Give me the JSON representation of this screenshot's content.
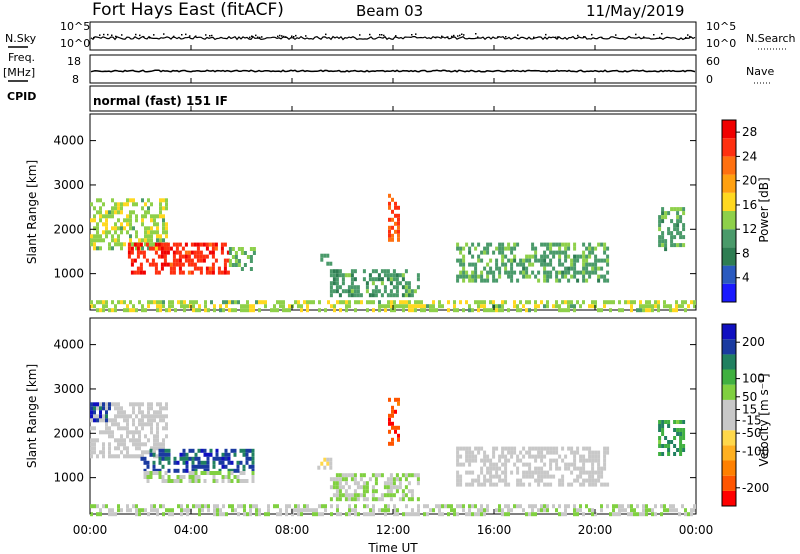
{
  "header": {
    "radar": "Fort Hays East (fitACF)",
    "beam": "Beam 03",
    "date": "11/May/2019"
  },
  "status": {
    "nsky_label": "N.Sky",
    "nsky_ticks": [
      "10^5",
      "10^0"
    ],
    "nsearch_label": "N.Search",
    "nsearch_ticks": [
      "10^5",
      "10^0"
    ],
    "freq_label": "Freq.",
    "freq_unit": "[MHz]",
    "freq_ticks": [
      "18",
      "8"
    ],
    "nave_label": "Nave",
    "nave_ticks": [
      "60",
      "0"
    ],
    "cpid_label": "CPID",
    "cpid_value": "normal (fast) 151 IF"
  },
  "colors": {
    "power_scale": [
      "#1a1aff",
      "#2a5abf",
      "#2e7d52",
      "#4a9a6a",
      "#8ed04a",
      "#ffd820",
      "#ffa010",
      "#ff7010",
      "#ff3010",
      "#f00000"
    ],
    "velocity_scale": [
      "#ff0000",
      "#ff5500",
      "#ff8000",
      "#ffb020",
      "#ffd84a",
      "#c8c8c8",
      "#c8c8c8",
      "#80d040",
      "#40b040",
      "#208060",
      "#1a3aa0",
      "#1010c0"
    ]
  },
  "chart_data": [
    {
      "type": "heatmap",
      "title": "Power",
      "xlabel": "Time UT",
      "ylabel": "Slant Range [km]",
      "x_ticks": [
        "00:00",
        "04:00",
        "08:00",
        "12:00",
        "16:00",
        "20:00",
        "00:00"
      ],
      "xlim_hours": [
        0,
        24
      ],
      "y_ticks": [
        1000,
        2000,
        3000,
        4000
      ],
      "ylim": [
        180,
        4600
      ],
      "colorbar": {
        "label": "Power [dB]",
        "ticks": [
          4,
          8,
          12,
          16,
          20,
          24,
          28
        ],
        "range": [
          0,
          30
        ]
      },
      "regions": [
        {
          "t0": 0.0,
          "t1": 3.0,
          "r0": 1600,
          "r1": 2700,
          "value": 14
        },
        {
          "t0": 1.5,
          "t1": 5.5,
          "r0": 1000,
          "r1": 1700,
          "value": 26
        },
        {
          "t0": 5.5,
          "t1": 6.5,
          "r0": 1100,
          "r1": 1600,
          "value": 12
        },
        {
          "t0": 0.0,
          "t1": 24.0,
          "r0": 180,
          "r1": 400,
          "value": 14
        },
        {
          "t0": 9.0,
          "t1": 9.5,
          "r0": 1250,
          "r1": 1450,
          "value": 10
        },
        {
          "t0": 9.5,
          "t1": 13.0,
          "r0": 550,
          "r1": 1100,
          "value": 10
        },
        {
          "t0": 11.8,
          "t1": 12.2,
          "r0": 1800,
          "r1": 2800,
          "value": 24
        },
        {
          "t0": 14.5,
          "t1": 20.5,
          "r0": 850,
          "r1": 1700,
          "value": 11
        },
        {
          "t0": 22.5,
          "t1": 23.5,
          "r0": 1550,
          "r1": 2500,
          "value": 11
        }
      ]
    },
    {
      "type": "heatmap",
      "title": "Velocity",
      "xlabel": "Time UT",
      "ylabel": "Slant Range [km]",
      "x_ticks": [
        "00:00",
        "04:00",
        "08:00",
        "12:00",
        "16:00",
        "20:00",
        "00:00"
      ],
      "xlim_hours": [
        0,
        24
      ],
      "y_ticks": [
        1000,
        2000,
        3000,
        4000
      ],
      "ylim": [
        180,
        4600
      ],
      "colorbar": {
        "label": "Velocity [m s⁻¹]",
        "ticks": [
          200,
          100,
          50,
          15,
          -15,
          -50,
          -100,
          -200
        ],
        "range": [
          -250,
          250
        ]
      },
      "regions": [
        {
          "t0": 0.0,
          "t1": 3.0,
          "r0": 1500,
          "r1": 2700,
          "value": 0
        },
        {
          "t0": 0.0,
          "t1": 0.8,
          "r0": 2300,
          "r1": 2700,
          "value": 200
        },
        {
          "t0": 2.0,
          "t1": 6.5,
          "r0": 1150,
          "r1": 1650,
          "value": 180
        },
        {
          "t0": 2.0,
          "t1": 6.5,
          "r0": 950,
          "r1": 1150,
          "value": 40
        },
        {
          "t0": 0.0,
          "t1": 24.0,
          "r0": 180,
          "r1": 400,
          "value": 30
        },
        {
          "t0": 9.0,
          "t1": 9.5,
          "r0": 1250,
          "r1": 1450,
          "value": -40
        },
        {
          "t0": 9.5,
          "t1": 13.0,
          "r0": 550,
          "r1": 1100,
          "value": 40
        },
        {
          "t0": 11.8,
          "t1": 12.2,
          "r0": 1800,
          "r1": 2800,
          "value": -200
        },
        {
          "t0": 14.5,
          "t1": 20.5,
          "r0": 850,
          "r1": 1700,
          "value": 0
        },
        {
          "t0": 22.5,
          "t1": 23.5,
          "r0": 1550,
          "r1": 2300,
          "value": 120
        }
      ]
    }
  ]
}
